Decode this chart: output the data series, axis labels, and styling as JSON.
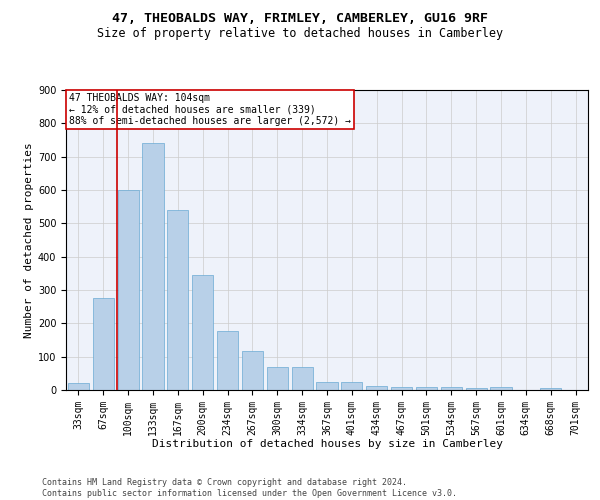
{
  "title1": "47, THEOBALDS WAY, FRIMLEY, CAMBERLEY, GU16 9RF",
  "title2": "Size of property relative to detached houses in Camberley",
  "xlabel": "Distribution of detached houses by size in Camberley",
  "ylabel": "Number of detached properties",
  "categories": [
    "33sqm",
    "67sqm",
    "100sqm",
    "133sqm",
    "167sqm",
    "200sqm",
    "234sqm",
    "267sqm",
    "300sqm",
    "334sqm",
    "367sqm",
    "401sqm",
    "434sqm",
    "467sqm",
    "501sqm",
    "534sqm",
    "567sqm",
    "601sqm",
    "634sqm",
    "668sqm",
    "701sqm"
  ],
  "values": [
    20,
    275,
    600,
    740,
    540,
    345,
    178,
    118,
    68,
    68,
    23,
    23,
    13,
    8,
    8,
    8,
    5,
    8,
    0,
    5,
    0
  ],
  "bar_color": "#b8d0e8",
  "bar_edge_color": "#6aaad4",
  "grid_color": "#cccccc",
  "bg_color": "#eef2fa",
  "annotation_box_color": "#cc0000",
  "annotation_text": "47 THEOBALDS WAY: 104sqm\n← 12% of detached houses are smaller (339)\n88% of semi-detached houses are larger (2,572) →",
  "vline_color": "#cc0000",
  "vline_x": 1.57,
  "ylim": [
    0,
    900
  ],
  "yticks": [
    0,
    100,
    200,
    300,
    400,
    500,
    600,
    700,
    800,
    900
  ],
  "footnote": "Contains HM Land Registry data © Crown copyright and database right 2024.\nContains public sector information licensed under the Open Government Licence v3.0.",
  "title1_fontsize": 9.5,
  "title2_fontsize": 8.5,
  "xlabel_fontsize": 8,
  "ylabel_fontsize": 8,
  "tick_fontsize": 7,
  "annot_fontsize": 7,
  "footnote_fontsize": 6
}
